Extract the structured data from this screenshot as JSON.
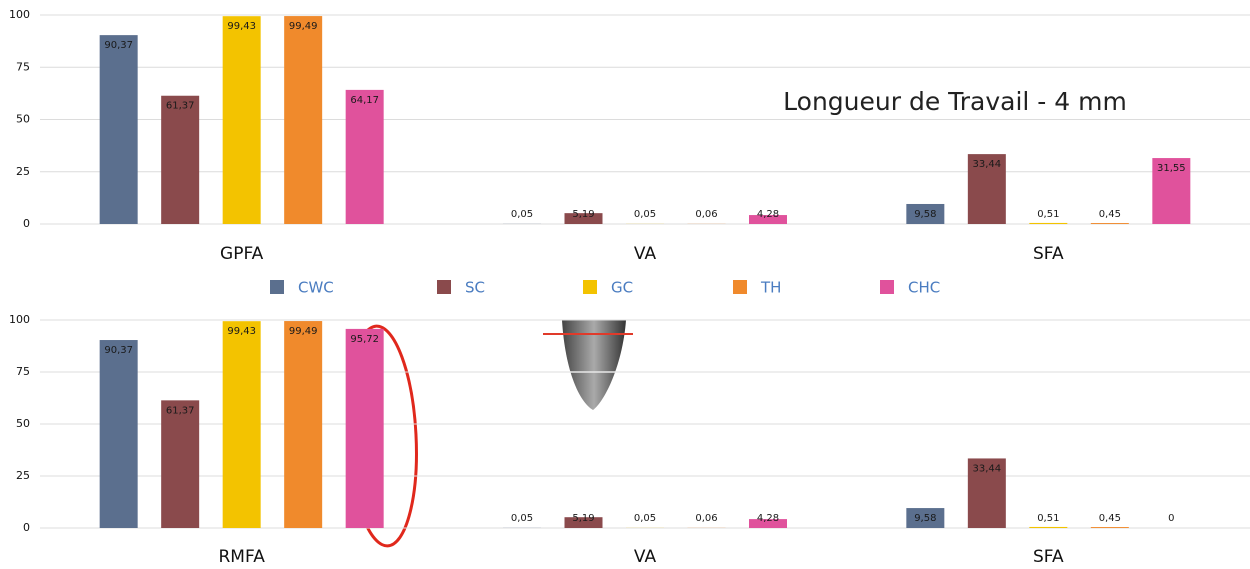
{
  "chart_data": [
    {
      "type": "bar",
      "annotation": "Longueur de Travail - 4 mm",
      "categories": [
        "GPFA",
        "VA",
        "SFA"
      ],
      "series": [
        {
          "name": "CWC",
          "color": "#5b6f8e",
          "values": [
            90.37,
            0.05,
            9.58
          ],
          "value_labels": [
            "90,37",
            "0,05",
            "9,58"
          ]
        },
        {
          "name": "SC",
          "color": "#8a4a4c",
          "values": [
            61.37,
            5.19,
            33.44
          ],
          "value_labels": [
            "61,37",
            "5,19",
            "33,44"
          ]
        },
        {
          "name": "GC",
          "color": "#f3c300",
          "values": [
            99.43,
            0.05,
            0.51
          ],
          "value_labels": [
            "99,43",
            "0,05",
            "0,51"
          ]
        },
        {
          "name": "TH",
          "color": "#f08a2c",
          "values": [
            99.49,
            0.06,
            0.45
          ],
          "value_labels": [
            "99,49",
            "0,06",
            "0,45"
          ]
        },
        {
          "name": "CHC",
          "color": "#e0529c",
          "values": [
            64.17,
            4.28,
            31.55
          ],
          "value_labels": [
            "64,17",
            "4,28",
            "31,55"
          ]
        }
      ],
      "ylim": [
        0,
        100
      ],
      "yticks": [
        0,
        25,
        50,
        75,
        100
      ],
      "grid": true,
      "legend": "bottom"
    },
    {
      "type": "bar",
      "categories": [
        "RMFA",
        "VA",
        "SFA"
      ],
      "series": [
        {
          "name": "CWC",
          "color": "#5b6f8e",
          "values": [
            90.37,
            0.05,
            9.58
          ],
          "value_labels": [
            "90,37",
            "0,05",
            "9,58"
          ]
        },
        {
          "name": "SC",
          "color": "#8a4a4c",
          "values": [
            61.37,
            5.19,
            33.44
          ],
          "value_labels": [
            "61,37",
            "5,19",
            "33,44"
          ]
        },
        {
          "name": "GC",
          "color": "#f3c300",
          "values": [
            99.43,
            0.05,
            0.51
          ],
          "value_labels": [
            "99,43",
            "0,05",
            "0,51"
          ]
        },
        {
          "name": "TH",
          "color": "#f08a2c",
          "values": [
            99.49,
            0.06,
            0.45
          ],
          "value_labels": [
            "99,49",
            "0,06",
            "0,45"
          ]
        },
        {
          "name": "CHC",
          "color": "#e0529c",
          "values": [
            95.72,
            4.28,
            0
          ],
          "value_labels": [
            "95,72",
            "4,28",
            "0"
          ]
        }
      ],
      "ylim": [
        0,
        100
      ],
      "yticks": [
        0,
        25,
        50,
        75,
        100
      ],
      "grid": true
    }
  ]
}
